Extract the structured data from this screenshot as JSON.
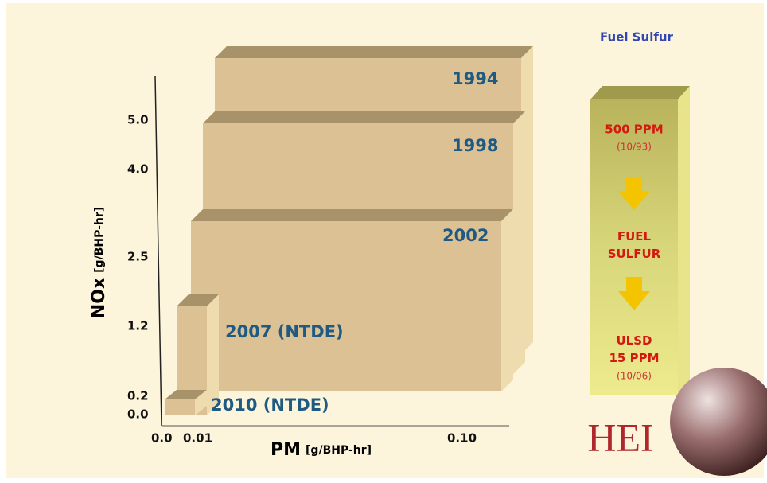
{
  "chart": {
    "y_axis_title": "NOx",
    "y_axis_unit": "[g/BHP-hr]",
    "y_tick_labels": [
      "5.0",
      "4.0",
      "2.5",
      "1.2",
      "0.2",
      "0.0"
    ],
    "x_axis_title": "PM",
    "x_axis_unit": "[g/BHP-hr]",
    "x_tick_labels": [
      "0.0",
      "0.01",
      "0.10"
    ],
    "boxes": [
      "1994",
      "1998",
      "2002",
      "2007 (NTDE)",
      "2010 (NTDE)"
    ]
  },
  "side_panel": {
    "title": "Fuel Sulfur",
    "items": [
      {
        "label": "500 PPM",
        "date": "(10/93)"
      },
      {
        "label": "FUEL SULFUR"
      },
      {
        "label": "ULSD 15 PPM",
        "date": "(10/06)"
      }
    ]
  },
  "logo": "HEI"
}
